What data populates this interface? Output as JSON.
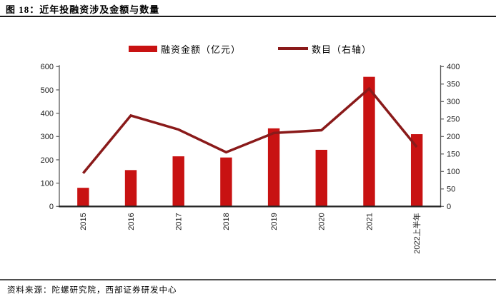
{
  "header": {
    "title": "图 18：近年投融资涉及金额与数量"
  },
  "legend": {
    "items": [
      {
        "label": "融资金额（亿元）",
        "type": "bar",
        "color": "#C81212"
      },
      {
        "label": "数目（右轴）",
        "type": "line",
        "color": "#8A1A1A"
      }
    ]
  },
  "chart_data": {
    "type": "bar+line",
    "title": "图 18：近年投融资涉及金额与数量",
    "categories": [
      "2015",
      "2016",
      "2017",
      "2018",
      "2019",
      "2020",
      "2021",
      "2022上半年"
    ],
    "series": [
      {
        "name": "融资金额（亿元）",
        "type": "bar",
        "axis": "left",
        "color": "#C81212",
        "values": [
          80,
          156,
          215,
          210,
          335,
          243,
          556,
          310
        ]
      },
      {
        "name": "数目（右轴）",
        "type": "line",
        "axis": "right",
        "color": "#8A1A1A",
        "values": [
          95,
          260,
          220,
          155,
          210,
          218,
          337,
          170
        ]
      }
    ],
    "left_axis": {
      "min": 0,
      "max": 600,
      "step": 100,
      "ticks": [
        "0",
        "100",
        "200",
        "300",
        "400",
        "500",
        "600"
      ]
    },
    "right_axis": {
      "min": 0,
      "max": 400,
      "step": 50,
      "ticks": [
        "0",
        "50",
        "100",
        "150",
        "200",
        "250",
        "300",
        "350",
        "400"
      ]
    },
    "grid": false,
    "legend_position": "top"
  },
  "footer": {
    "source": "资料来源：陀螺研究院，西部证券研发中心"
  },
  "colors": {
    "bar": "#C81212",
    "line": "#8A1A1A",
    "axis_side": "#595959",
    "axis_bottom": "#262626",
    "tick_text": "#1a1a1a",
    "top_rule": "#1a1a1a",
    "bottom_rule": "#4f4f4f"
  }
}
